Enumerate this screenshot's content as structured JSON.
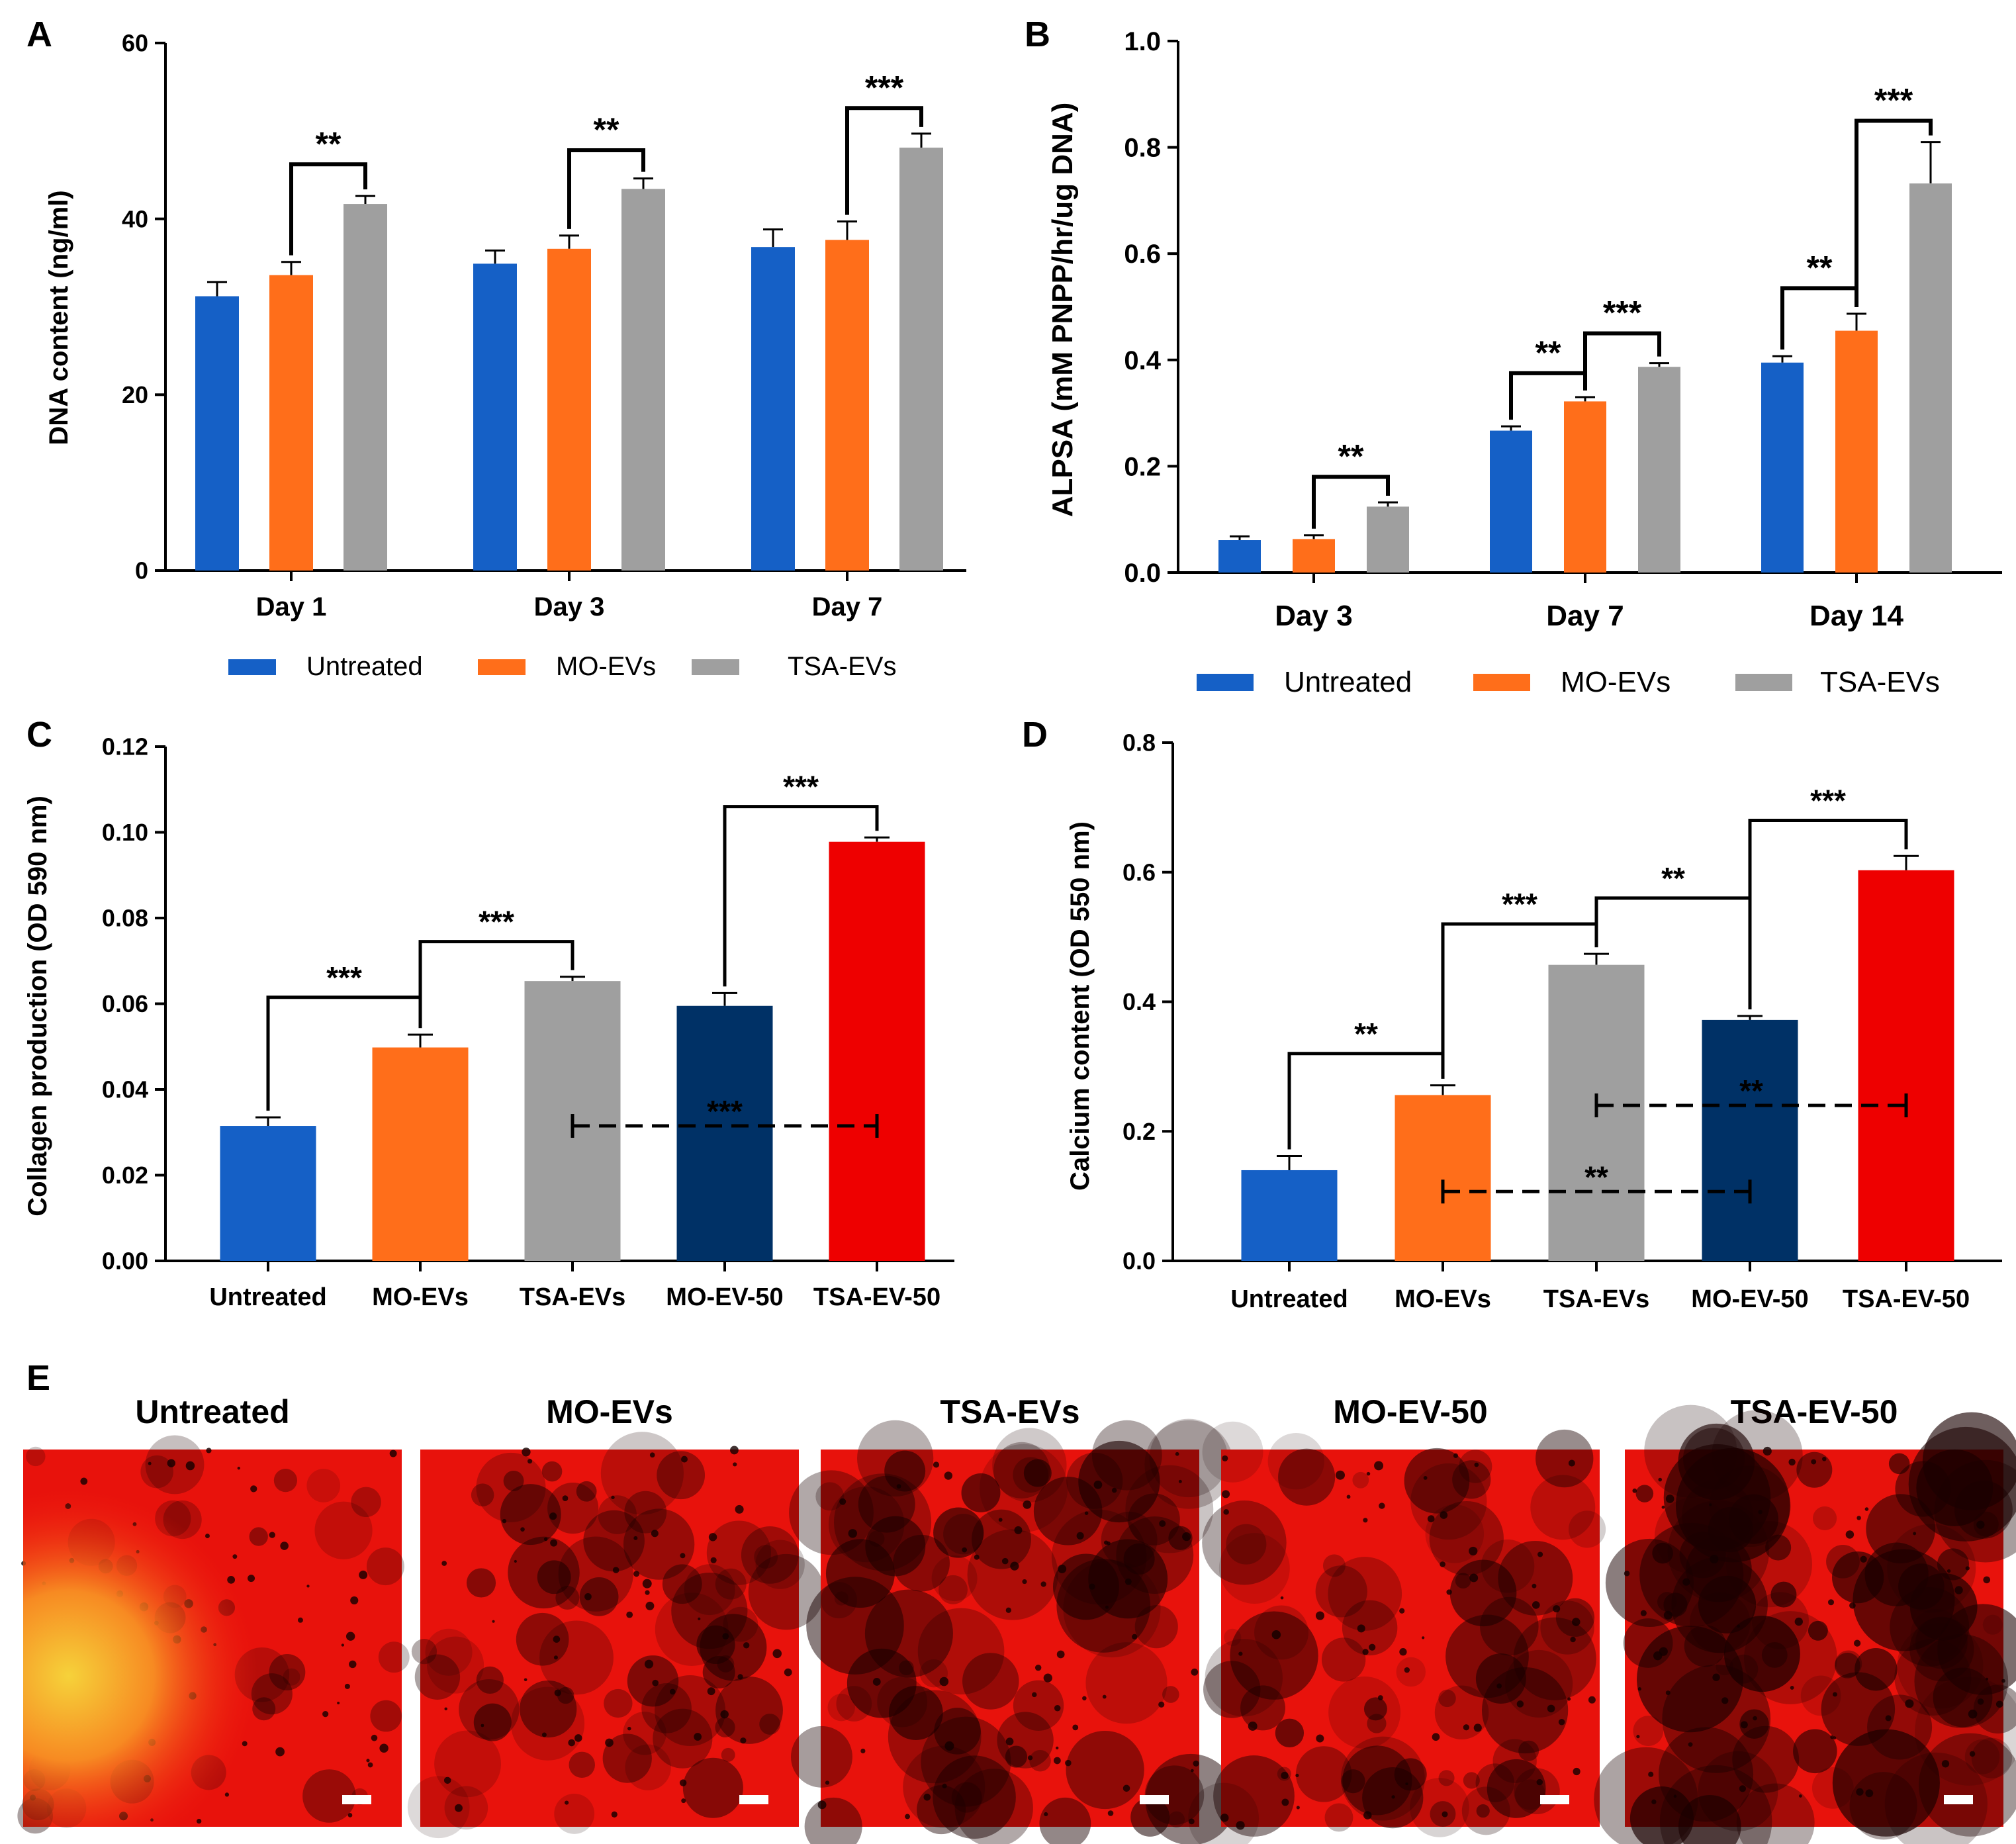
{
  "panels": {
    "a": "A",
    "b": "B",
    "c": "C",
    "d": "D",
    "e": "E"
  },
  "colors": {
    "untreated": "#1560C6",
    "mo": "#FF6E1A",
    "tsa": "#9F9F9F",
    "mo50": "#003166",
    "tsa50": "#EE0000"
  },
  "chart_data": [
    {
      "id": "A",
      "type": "bar",
      "ylabel": "DNA content (ng/ml)",
      "xlabel": "",
      "categories": [
        "Day 1",
        "Day 3",
        "Day 7"
      ],
      "ylim": [
        0,
        60
      ],
      "yticks": [
        "0",
        "20",
        "40",
        "60"
      ],
      "series": [
        {
          "name": "Untreated",
          "values": [
            31.2,
            34.9,
            36.8
          ],
          "errors": [
            1.6,
            1.5,
            2.0
          ]
        },
        {
          "name": "MO-EVs",
          "values": [
            33.6,
            36.6,
            37.6
          ],
          "errors": [
            1.5,
            1.5,
            2.1
          ]
        },
        {
          "name": "TSA-EVs",
          "values": [
            41.7,
            43.4,
            48.1
          ],
          "errors": [
            0.9,
            1.2,
            1.6
          ]
        }
      ],
      "annotations": [
        {
          "label": "**",
          "group": 0,
          "from": 1,
          "to": 2,
          "level": 46.2
        },
        {
          "label": "**",
          "group": 1,
          "from": 1,
          "to": 2,
          "level": 47.8
        },
        {
          "label": "***",
          "group": 2,
          "from": 1,
          "to": 2,
          "level": 52.6
        }
      ],
      "legend": [
        "Untreated",
        "MO-EVs",
        "TSA-EVs"
      ]
    },
    {
      "id": "B",
      "type": "bar",
      "ylabel": "ALPSA (mM PNPP/hr/ug DNA)",
      "xlabel": "",
      "categories": [
        "Day 3",
        "Day 7",
        "Day 14"
      ],
      "ylim": [
        0,
        1.0
      ],
      "yticks": [
        "0.0",
        "0.2",
        "0.4",
        "0.6",
        "0.8",
        "1.0"
      ],
      "series": [
        {
          "name": "Untreated",
          "values": [
            0.061,
            0.267,
            0.395
          ],
          "errors": [
            0.007,
            0.008,
            0.012
          ]
        },
        {
          "name": "MO-EVs",
          "values": [
            0.063,
            0.322,
            0.455
          ],
          "errors": [
            0.007,
            0.008,
            0.032
          ]
        },
        {
          "name": "TSA-EVs",
          "values": [
            0.124,
            0.387,
            0.732
          ],
          "errors": [
            0.008,
            0.007,
            0.078
          ]
        }
      ],
      "annotations": [
        {
          "label": "**",
          "group": 0,
          "from": 1,
          "to": 2,
          "level": 0.18
        },
        {
          "label": "**",
          "group": 1,
          "from": 0,
          "to": 1,
          "level": 0.375
        },
        {
          "label": "***",
          "group": 1,
          "from": 1,
          "to": 2,
          "level": 0.45
        },
        {
          "label": "**",
          "group": 2,
          "from": 0,
          "to": 1,
          "level": 0.535
        },
        {
          "label": "***",
          "group": 2,
          "from": 1,
          "to": 2,
          "level": 0.85
        }
      ],
      "legend": [
        "Untreated",
        "MO-EVs",
        "TSA-EVs"
      ]
    },
    {
      "id": "C",
      "type": "bar",
      "ylabel": "Collagen production (OD 590 nm)",
      "xlabel": "",
      "categories": [
        "Untreated",
        "MO-EVs",
        "TSA-EVs",
        "MO-EV-50",
        "TSA-EV-50"
      ],
      "ylim": [
        0,
        0.12
      ],
      "yticks": [
        "0.00",
        "0.02",
        "0.04",
        "0.06",
        "0.08",
        "0.10",
        "0.12"
      ],
      "values": [
        0.0315,
        0.0498,
        0.0653,
        0.0595,
        0.0978
      ],
      "errors": [
        0.002,
        0.003,
        0.001,
        0.003,
        0.001
      ],
      "annotations": [
        {
          "label": "***",
          "from": 0,
          "to": 1,
          "level": 0.0615,
          "style": "solid"
        },
        {
          "label": "***",
          "from": 1,
          "to": 2,
          "level": 0.0745,
          "style": "solid"
        },
        {
          "label": "***",
          "from": 3,
          "to": 4,
          "level": 0.106,
          "style": "solid"
        },
        {
          "label": "***",
          "from": 2,
          "to": 4,
          "level": 0.0315,
          "style": "dashed"
        }
      ]
    },
    {
      "id": "D",
      "type": "bar",
      "ylabel": "Calcium content (OD 550 nm)",
      "xlabel": "",
      "categories": [
        "Untreated",
        "MO-EVs",
        "TSA-EVs",
        "MO-EV-50",
        "TSA-EV-50"
      ],
      "ylim": [
        0,
        0.8
      ],
      "yticks": [
        "0.0",
        "0.2",
        "0.4",
        "0.6",
        "0.8"
      ],
      "values": [
        0.14,
        0.256,
        0.457,
        0.372,
        0.603
      ],
      "errors": [
        0.022,
        0.015,
        0.017,
        0.006,
        0.022
      ],
      "annotations": [
        {
          "label": "**",
          "from": 0,
          "to": 1,
          "level": 0.32,
          "style": "solid"
        },
        {
          "label": "***",
          "from": 1,
          "to": 2,
          "level": 0.52,
          "style": "solid"
        },
        {
          "label": "**",
          "from": 2,
          "to": 3,
          "level": 0.56,
          "style": "solid"
        },
        {
          "label": "***",
          "from": 3,
          "to": 4,
          "level": 0.68,
          "style": "solid"
        },
        {
          "label": "**",
          "from": 2,
          "to": 4,
          "level": 0.24,
          "style": "dashed"
        },
        {
          "label": "**",
          "from": 1,
          "to": 3,
          "level": 0.107,
          "style": "dashed"
        }
      ]
    }
  ],
  "panel_e": {
    "titles": [
      "Untreated",
      "MO-EVs",
      "TSA-EVs",
      "MO-EV-50",
      "TSA-EV-50"
    ],
    "intensity": [
      0.95,
      0.72,
      0.62,
      0.68,
      0.48
    ]
  }
}
